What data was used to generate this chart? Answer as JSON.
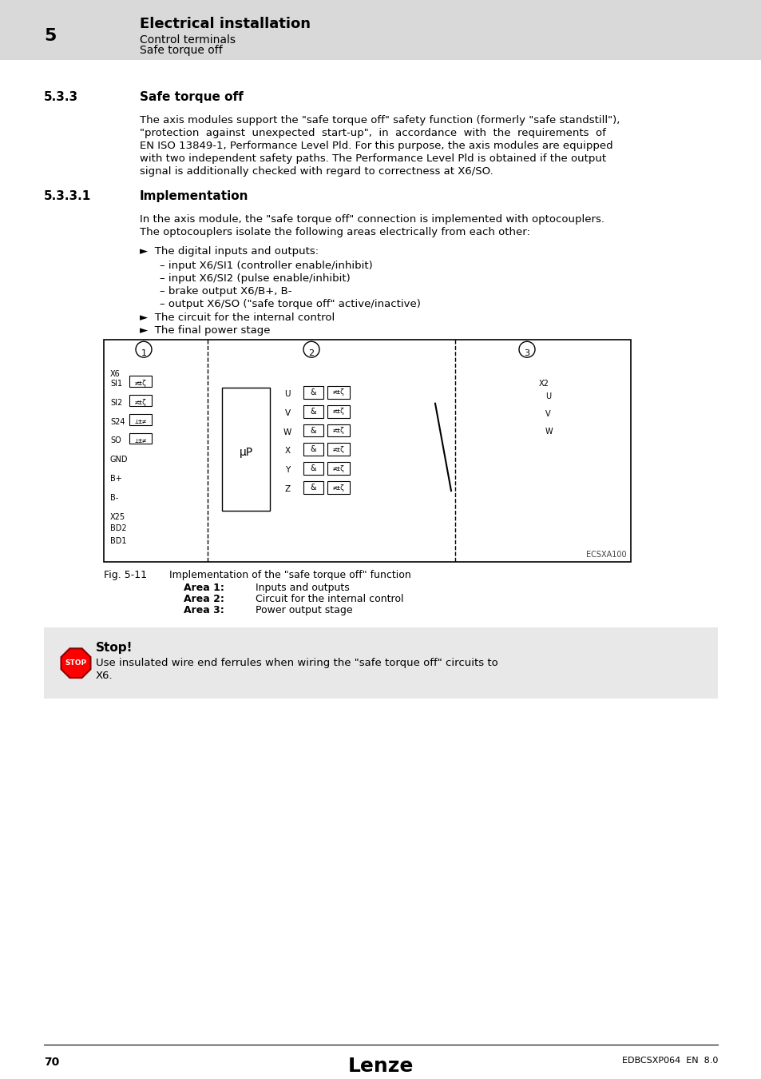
{
  "page_bg": "#ffffff",
  "header_bg": "#d9d9d9",
  "header_number": "5",
  "header_title": "Electrical installation",
  "header_sub1": "Control terminals",
  "header_sub2": "Safe torque off",
  "section_number": "5.3.3",
  "section_title": "Safe torque off",
  "section_body": "The axis modules support the \"safe torque off\" safety function (formerly \"safe standstill\"),\n\"protection  against  unexpected  start-up\",  in  accordance  with  the  requirements  of\nEN ISO 13849-1, Performance Level Pld. For this purpose, the axis modules are equipped\nwith two independent safety paths. The Performance Level Pld is obtained if the output\nsignal is additionally checked with regard to correctness at X6/SO.",
  "sub_section_number": "5.3.3.1",
  "sub_section_title": "Implementation",
  "sub_body1": "In the axis module, the \"safe torque off\" connection is implemented with optocouplers.\nThe optocouplers isolate the following areas electrically from each other:",
  "bullet1": "►  The digital inputs and outputs:",
  "sub_bullet1": "– input X6/SI1 (controller enable/inhibit)",
  "sub_bullet2": "– input X6/SI2 (pulse enable/inhibit)",
  "sub_bullet3": "– brake output X6/B+, B-",
  "sub_bullet4": "– output X6/SO (\"safe torque off\" active/inactive)",
  "bullet2": "►  The circuit for the internal control",
  "bullet3": "►  The final power stage",
  "fig_caption": "Fig. 5-11       Implementation of the \"safe torque off\" function",
  "fig_area1": "Area 1:",
  "fig_area1_desc": "Inputs and outputs",
  "fig_area2": "Area 2:",
  "fig_area2_desc": "Circuit for the internal control",
  "fig_area3": "Area 3:",
  "fig_area3_desc": "Power output stage",
  "stop_title": "Stop!",
  "stop_body": "Use insulated wire end ferrules when wiring the \"safe torque off\" circuits to\nX6.",
  "footer_page": "70",
  "footer_brand": "Lenze",
  "footer_doc": "EDBCSXP064  EN  8.0",
  "diagram_ref": "ECSXA100"
}
